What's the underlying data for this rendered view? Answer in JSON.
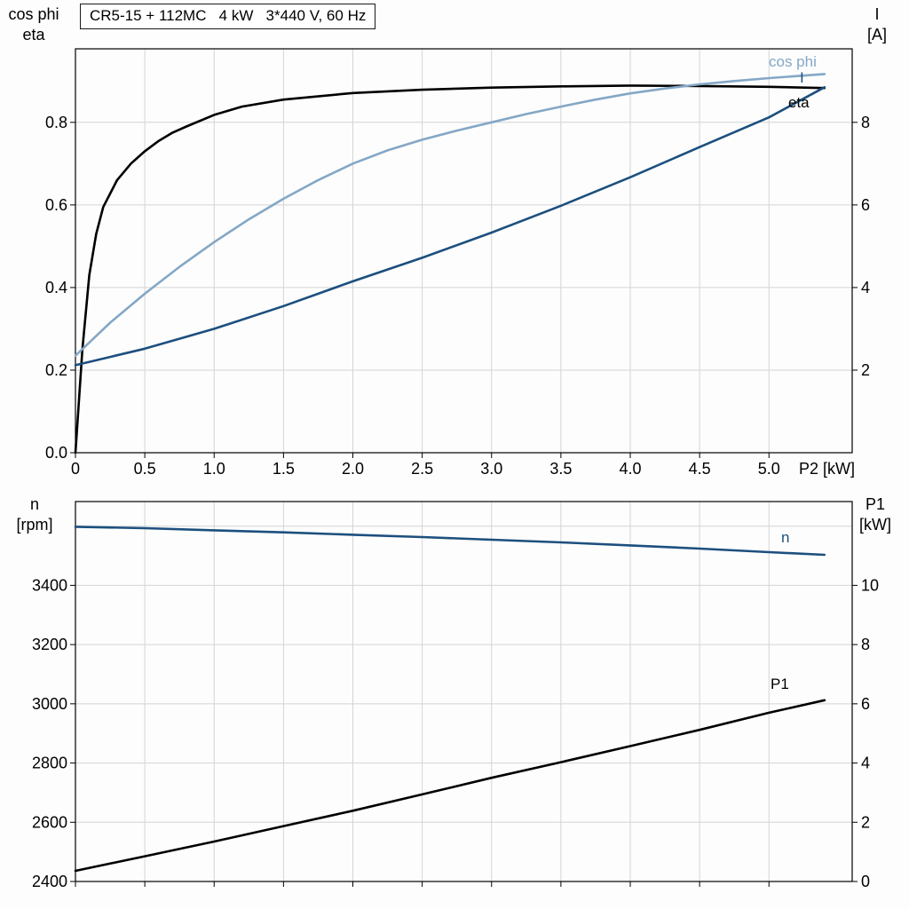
{
  "title": "CR5-15 + 112MC   4 kW   3*440 V, 60 Hz",
  "colors": {
    "eta": "#000000",
    "cos_phi": "#84a7c6",
    "current": "#1c4f7e",
    "n": "#1c4f7e",
    "p1": "#000000",
    "grid": "#d4d4d4",
    "frame": "#000000"
  },
  "axis_corner_labels": {
    "top_left": [
      "cos phi",
      "eta"
    ],
    "top_right": [
      "I",
      "[A]"
    ],
    "bottom_left": [
      "n",
      "[rpm]"
    ],
    "bottom_right": [
      "P1",
      "[kW]"
    ]
  },
  "curve_labels": {
    "cos_phi": "cos phi",
    "current": "I",
    "eta": "eta",
    "n": "n",
    "p1": "P1"
  },
  "chart_data": [
    {
      "type": "line",
      "title": "CR5-15 + 112MC   4 kW   3*440 V, 60 Hz",
      "x_axis": {
        "label": "P2 [kW]",
        "lim": [
          0,
          5.6
        ],
        "ticks": [
          0,
          0.5,
          1.0,
          1.5,
          2.0,
          2.5,
          3.0,
          3.5,
          4.0,
          4.5,
          5.0
        ],
        "tick_labels": [
          "0",
          "0.5",
          "1.0",
          "1.5",
          "2.0",
          "2.5",
          "3.0",
          "3.5",
          "4.0",
          "4.5",
          "5.0"
        ]
      },
      "y_left": {
        "label": "cos phi / eta",
        "lim": [
          0,
          0.978
        ],
        "ticks": [
          0.0,
          0.2,
          0.4,
          0.6,
          0.8
        ],
        "tick_labels": [
          "0.0",
          "0.2",
          "0.4",
          "0.6",
          "0.8"
        ],
        "grid": [
          0.2,
          0.4,
          0.6,
          0.8
        ]
      },
      "y_right": {
        "label": "I [A]",
        "lim": [
          0,
          9.78
        ],
        "ticks": [
          2,
          4,
          6,
          8
        ],
        "tick_labels": [
          "2",
          "4",
          "6",
          "8"
        ]
      },
      "series": [
        {
          "name": "eta",
          "axis": "left",
          "color": "#000000",
          "x": [
            0,
            0.05,
            0.1,
            0.15,
            0.2,
            0.3,
            0.4,
            0.5,
            0.6,
            0.7,
            0.8,
            1.0,
            1.2,
            1.5,
            2.0,
            2.5,
            3.0,
            3.5,
            4.0,
            4.5,
            5.0,
            5.4
          ],
          "y": [
            0,
            0.25,
            0.43,
            0.53,
            0.595,
            0.66,
            0.7,
            0.73,
            0.755,
            0.775,
            0.79,
            0.818,
            0.838,
            0.855,
            0.871,
            0.879,
            0.884,
            0.887,
            0.889,
            0.888,
            0.886,
            0.883
          ]
        },
        {
          "name": "cos phi",
          "axis": "left",
          "color": "#84a7c6",
          "x": [
            0,
            0.25,
            0.5,
            0.75,
            1.0,
            1.25,
            1.5,
            1.75,
            2.0,
            2.25,
            2.5,
            2.75,
            3.0,
            3.25,
            3.5,
            3.75,
            4.0,
            4.25,
            4.5,
            4.75,
            5.0,
            5.2,
            5.4
          ],
          "y": [
            0.235,
            0.315,
            0.385,
            0.45,
            0.51,
            0.565,
            0.615,
            0.66,
            0.7,
            0.732,
            0.758,
            0.78,
            0.8,
            0.82,
            0.838,
            0.855,
            0.87,
            0.882,
            0.892,
            0.9,
            0.907,
            0.912,
            0.917
          ]
        },
        {
          "name": "I",
          "axis": "right",
          "color": "#1c4f7e",
          "x": [
            0,
            0.5,
            1.0,
            1.5,
            2.0,
            2.5,
            3.0,
            3.5,
            4.0,
            4.5,
            5.0,
            5.4
          ],
          "y": [
            2.12,
            2.52,
            3.0,
            3.55,
            4.15,
            4.72,
            5.33,
            5.98,
            6.67,
            7.4,
            8.12,
            8.85
          ]
        }
      ]
    },
    {
      "type": "line",
      "title": "",
      "x_axis": {
        "label": "",
        "lim": [
          0,
          5.6
        ],
        "ticks": [
          0,
          0.5,
          1.0,
          1.5,
          2.0,
          2.5,
          3.0,
          3.5,
          4.0,
          4.5,
          5.0
        ],
        "tick_labels": []
      },
      "y_left": {
        "label": "n [rpm]",
        "lim": [
          2400,
          3683
        ],
        "ticks": [
          2400,
          2600,
          2800,
          3000,
          3200,
          3400
        ],
        "tick_labels": [
          "2400",
          "2600",
          "2800",
          "3000",
          "3200",
          "3400"
        ],
        "grid": [
          2600,
          2800,
          3000,
          3200,
          3400,
          3600
        ]
      },
      "y_right": {
        "label": "P1 [kW]",
        "lim": [
          0,
          12.83
        ],
        "ticks": [
          0,
          2,
          4,
          6,
          8,
          10
        ],
        "tick_labels": [
          "0",
          "2",
          "4",
          "6",
          "8",
          "10"
        ]
      },
      "series": [
        {
          "name": "n",
          "axis": "left",
          "color": "#1c4f7e",
          "x": [
            0,
            0.5,
            1.0,
            1.5,
            2.0,
            2.5,
            3.0,
            3.5,
            4.0,
            4.5,
            5.0,
            5.4
          ],
          "y": [
            3598,
            3593,
            3586,
            3579,
            3571,
            3563,
            3554,
            3545,
            3535,
            3524,
            3512,
            3503
          ]
        },
        {
          "name": "P1",
          "axis": "right",
          "color": "#000000",
          "x": [
            0,
            0.5,
            1.0,
            1.5,
            2.0,
            2.5,
            3.0,
            3.5,
            4.0,
            4.5,
            5.0,
            5.4
          ],
          "y": [
            0.36,
            0.85,
            1.35,
            1.87,
            2.39,
            2.94,
            3.5,
            4.03,
            4.57,
            5.12,
            5.7,
            6.12
          ]
        }
      ]
    }
  ]
}
